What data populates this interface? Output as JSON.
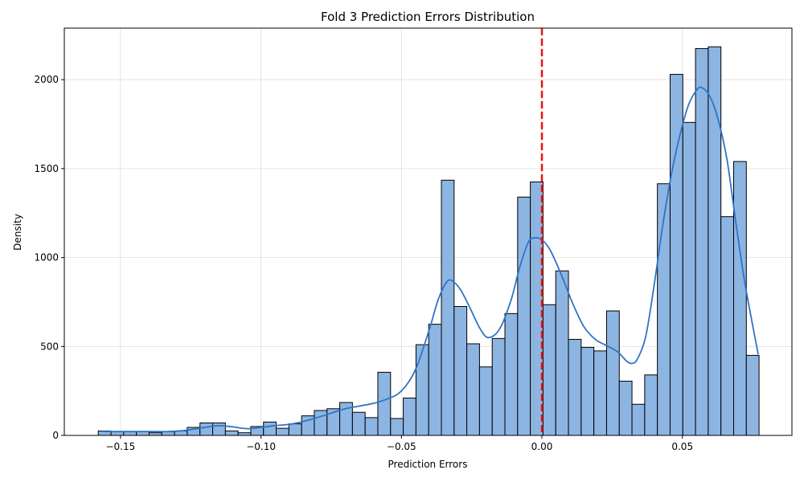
{
  "chart_data": {
    "type": "bar",
    "title": "Fold 3 Prediction Errors Distribution",
    "xlabel": "Prediction Errors",
    "ylabel": "Density",
    "xlim": [
      -0.17,
      0.089
    ],
    "ylim": [
      0,
      2290
    ],
    "grid": true,
    "bar_color": "#8db5e2",
    "bar_edge_color": "#000000",
    "kde_color": "#2f74c7",
    "vline": {
      "x": 0.0,
      "color": "#ee1111",
      "style": "dashed"
    },
    "x_ticks": [
      {
        "value": -0.15,
        "label": "−0.15"
      },
      {
        "value": -0.1,
        "label": "−0.10"
      },
      {
        "value": -0.05,
        "label": "−0.05"
      },
      {
        "value": 0.0,
        "label": "0.00"
      },
      {
        "value": 0.05,
        "label": "0.05"
      }
    ],
    "y_ticks": [
      {
        "value": 0,
        "label": "0"
      },
      {
        "value": 500,
        "label": "500"
      },
      {
        "value": 1000,
        "label": "1000"
      },
      {
        "value": 1500,
        "label": "1500"
      },
      {
        "value": 2000,
        "label": "2000"
      }
    ],
    "bin_start": -0.1579,
    "bin_width": 0.004523,
    "values": [
      25,
      20,
      20,
      20,
      15,
      20,
      25,
      45,
      70,
      70,
      25,
      15,
      50,
      75,
      40,
      65,
      110,
      140,
      150,
      185,
      130,
      100,
      355,
      95,
      210,
      510,
      625,
      1435,
      725,
      515,
      385,
      545,
      685,
      1340,
      1425,
      735,
      925,
      540,
      495,
      475,
      700,
      305,
      175,
      340,
      1415,
      2030,
      1760,
      2175,
      2185,
      1230,
      1540,
      450
    ],
    "kde": [
      [
        -0.157,
        22
      ],
      [
        -0.15,
        22
      ],
      [
        -0.14,
        22
      ],
      [
        -0.133,
        22
      ],
      [
        -0.127,
        28
      ],
      [
        -0.12,
        45
      ],
      [
        -0.115,
        55
      ],
      [
        -0.11,
        48
      ],
      [
        -0.105,
        38
      ],
      [
        -0.1,
        45
      ],
      [
        -0.095,
        55
      ],
      [
        -0.09,
        62
      ],
      [
        -0.085,
        78
      ],
      [
        -0.08,
        100
      ],
      [
        -0.075,
        125
      ],
      [
        -0.07,
        150
      ],
      [
        -0.065,
        165
      ],
      [
        -0.06,
        180
      ],
      [
        -0.055,
        205
      ],
      [
        -0.05,
        250
      ],
      [
        -0.045,
        370
      ],
      [
        -0.04,
        600
      ],
      [
        -0.037,
        760
      ],
      [
        -0.034,
        860
      ],
      [
        -0.032,
        870
      ],
      [
        -0.029,
        820
      ],
      [
        -0.026,
        730
      ],
      [
        -0.022,
        600
      ],
      [
        -0.019,
        550
      ],
      [
        -0.015,
        600
      ],
      [
        -0.011,
        760
      ],
      [
        -0.008,
        940
      ],
      [
        -0.005,
        1080
      ],
      [
        -0.003,
        1110
      ],
      [
        0.0,
        1100
      ],
      [
        0.003,
        1040
      ],
      [
        0.007,
        900
      ],
      [
        0.011,
        740
      ],
      [
        0.015,
        610
      ],
      [
        0.019,
        540
      ],
      [
        0.023,
        505
      ],
      [
        0.027,
        470
      ],
      [
        0.03,
        420
      ],
      [
        0.032,
        405
      ],
      [
        0.034,
        430
      ],
      [
        0.037,
        560
      ],
      [
        0.04,
        850
      ],
      [
        0.043,
        1180
      ],
      [
        0.046,
        1460
      ],
      [
        0.049,
        1680
      ],
      [
        0.052,
        1850
      ],
      [
        0.055,
        1940
      ],
      [
        0.057,
        1955
      ],
      [
        0.06,
        1900
      ],
      [
        0.063,
        1760
      ],
      [
        0.066,
        1540
      ],
      [
        0.069,
        1200
      ],
      [
        0.072,
        880
      ],
      [
        0.075,
        620
      ],
      [
        0.077,
        455
      ]
    ]
  }
}
